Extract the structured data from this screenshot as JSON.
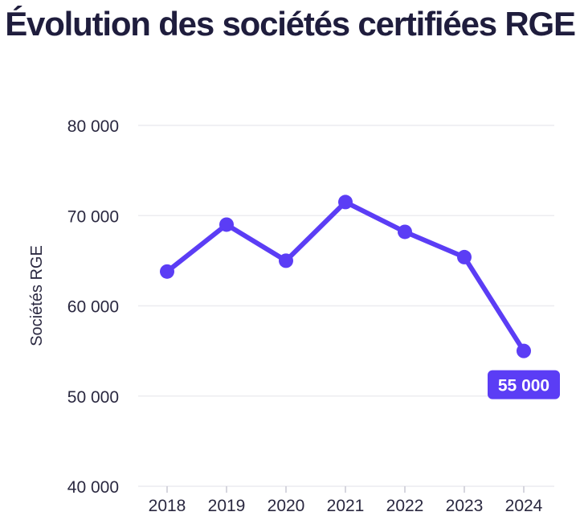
{
  "chart_data": {
    "type": "line",
    "title": "Évolution des sociétés certifiées RGE",
    "xlabel": "",
    "ylabel": "Sociétés RGE",
    "x": [
      "2018",
      "2019",
      "2020",
      "2021",
      "2022",
      "2023",
      "2024"
    ],
    "series": [
      {
        "values": [
          63800,
          69000,
          65000,
          71500,
          68200,
          65400,
          55000
        ]
      }
    ],
    "ylim": [
      40000,
      80000
    ],
    "y_ticks": [
      40000,
      50000,
      60000,
      70000,
      80000
    ],
    "y_tick_labels": [
      "40 000",
      "50 000",
      "60 000",
      "70 000",
      "80 000"
    ],
    "annotation": {
      "x": "2024",
      "label": "55 000"
    },
    "grid": "horizontal",
    "colors": {
      "line": "#5b3df5",
      "grid": "#ececf0",
      "text": "#2a2840",
      "title": "#1f1d3d",
      "callout_bg": "#5b3df5",
      "callout_text": "#ffffff"
    }
  }
}
